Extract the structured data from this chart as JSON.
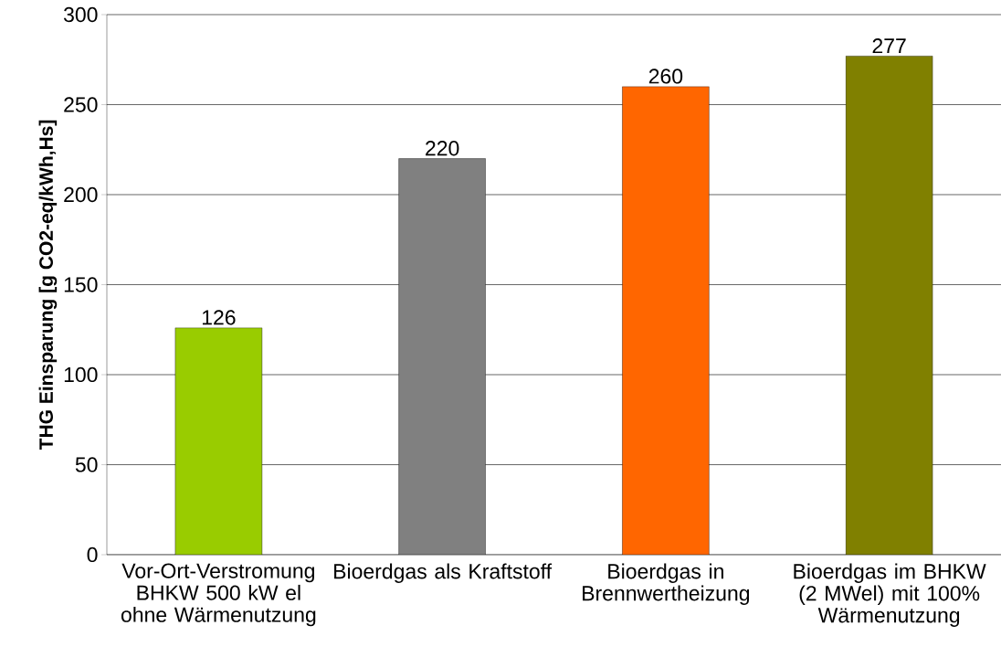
{
  "chart_data": {
    "type": "bar",
    "ylabel": "THG Einsparung [g CO2-eq/kWh,Hs]",
    "categories": [
      "Vor-Ort-Verstromung BHKW 500 kW el ohne Wärmenutzung",
      "Bioerdgas als Kraftstoff",
      "Bioerdgas in Brennwertheizung",
      "Bioerdgas im BHKW (2 MWel) mit 100% Wärmenutzung"
    ],
    "values": [
      126,
      220,
      260,
      277
    ],
    "colors": [
      "#99cc00",
      "#808080",
      "#ff6600",
      "#808000"
    ],
    "ylim": [
      0,
      300
    ],
    "yticks": [
      0,
      50,
      100,
      150,
      200,
      250,
      300
    ],
    "grid": "y",
    "data_labels": true
  }
}
